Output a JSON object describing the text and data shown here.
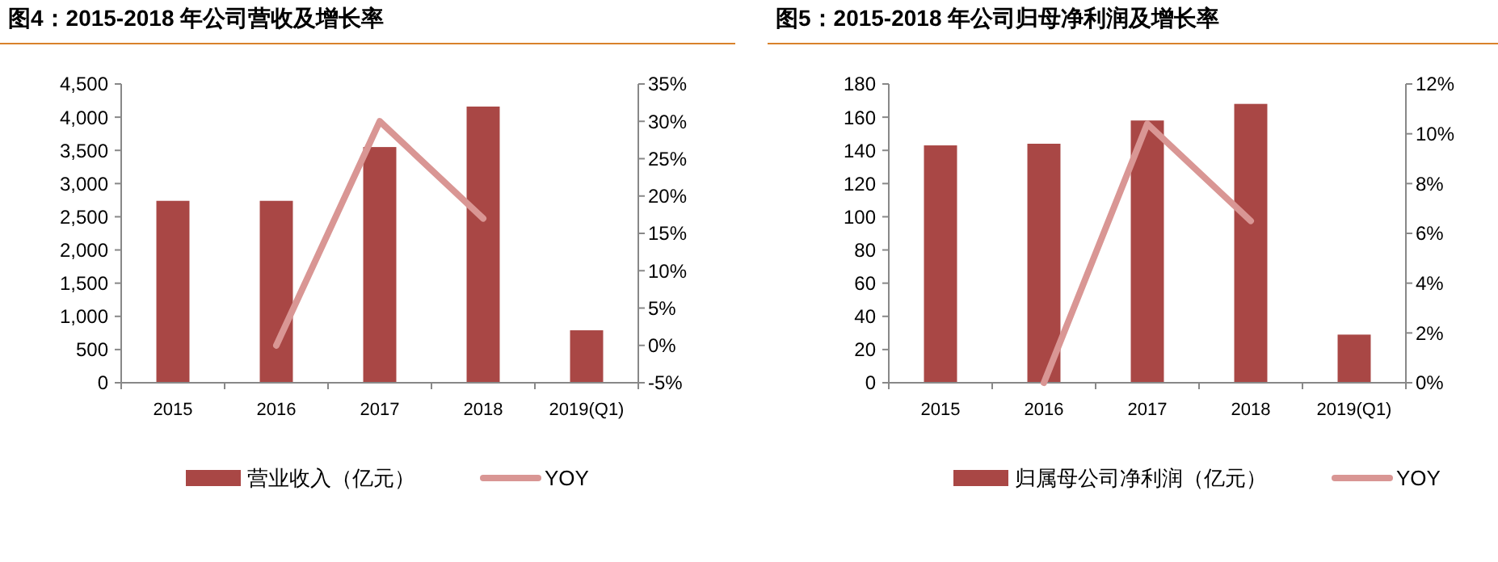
{
  "chart_data": [
    {
      "type": "bar",
      "title": "图4：2015-2018 年公司营收及增长率",
      "categories": [
        "2015",
        "2016",
        "2017",
        "2018",
        "2019(Q1)"
      ],
      "series": [
        {
          "name": "营业收入（亿元）",
          "color": "#a94745",
          "values": [
            2740,
            2740,
            3550,
            4160,
            790
          ]
        },
        {
          "name": "YOY",
          "type": "line",
          "axis": "y2",
          "color": "#d99694",
          "values": [
            null,
            0,
            30,
            17,
            null
          ]
        }
      ],
      "ylim": [
        0,
        4500
      ],
      "yticks": [
        0,
        500,
        {
          "value": 1000,
          "label": "1,000"
        },
        {
          "value": 1500,
          "label": "1,500"
        },
        {
          "value": 2000,
          "label": "2,000"
        },
        {
          "value": 2500,
          "label": "2,500"
        },
        {
          "value": 3000,
          "label": "3,000"
        },
        {
          "value": 3500,
          "label": "3,500"
        },
        {
          "value": 4000,
          "label": "4,000"
        },
        {
          "value": 4500,
          "label": "4,500"
        }
      ],
      "y2lim": [
        -5,
        35
      ],
      "y2ticks": [
        {
          "value": -5,
          "label": "-5%"
        },
        {
          "value": 0,
          "label": "0%"
        },
        {
          "value": 5,
          "label": "5%"
        },
        {
          "value": 10,
          "label": "10%"
        },
        {
          "value": 15,
          "label": "15%"
        },
        {
          "value": 20,
          "label": "20%"
        },
        {
          "value": 25,
          "label": "25%"
        },
        {
          "value": 30,
          "label": "30%"
        },
        {
          "value": 35,
          "label": "35%"
        }
      ],
      "legend": "bottom",
      "grid": false
    },
    {
      "type": "bar",
      "title": "图5：2015-2018 年公司归母净利润及增长率",
      "categories": [
        "2015",
        "2016",
        "2017",
        "2018",
        "2019(Q1)"
      ],
      "series": [
        {
          "name": "归属母公司净利润（亿元）",
          "color": "#a94745",
          "values": [
            143,
            144,
            158,
            168,
            29
          ]
        },
        {
          "name": "YOY",
          "type": "line",
          "axis": "y2",
          "color": "#d99694",
          "values": [
            null,
            0,
            10.4,
            6.5,
            null
          ]
        }
      ],
      "ylim": [
        0,
        180
      ],
      "yticks": [
        0,
        20,
        40,
        60,
        80,
        100,
        120,
        140,
        160,
        180
      ],
      "y2lim": [
        0,
        12
      ],
      "y2ticks": [
        {
          "value": 0,
          "label": "0%"
        },
        {
          "value": 2,
          "label": "2%"
        },
        {
          "value": 4,
          "label": "4%"
        },
        {
          "value": 6,
          "label": "6%"
        },
        {
          "value": 8,
          "label": "8%"
        },
        {
          "value": 10,
          "label": "10%"
        },
        {
          "value": 12,
          "label": "12%"
        }
      ],
      "legend": "bottom",
      "grid": false
    }
  ]
}
